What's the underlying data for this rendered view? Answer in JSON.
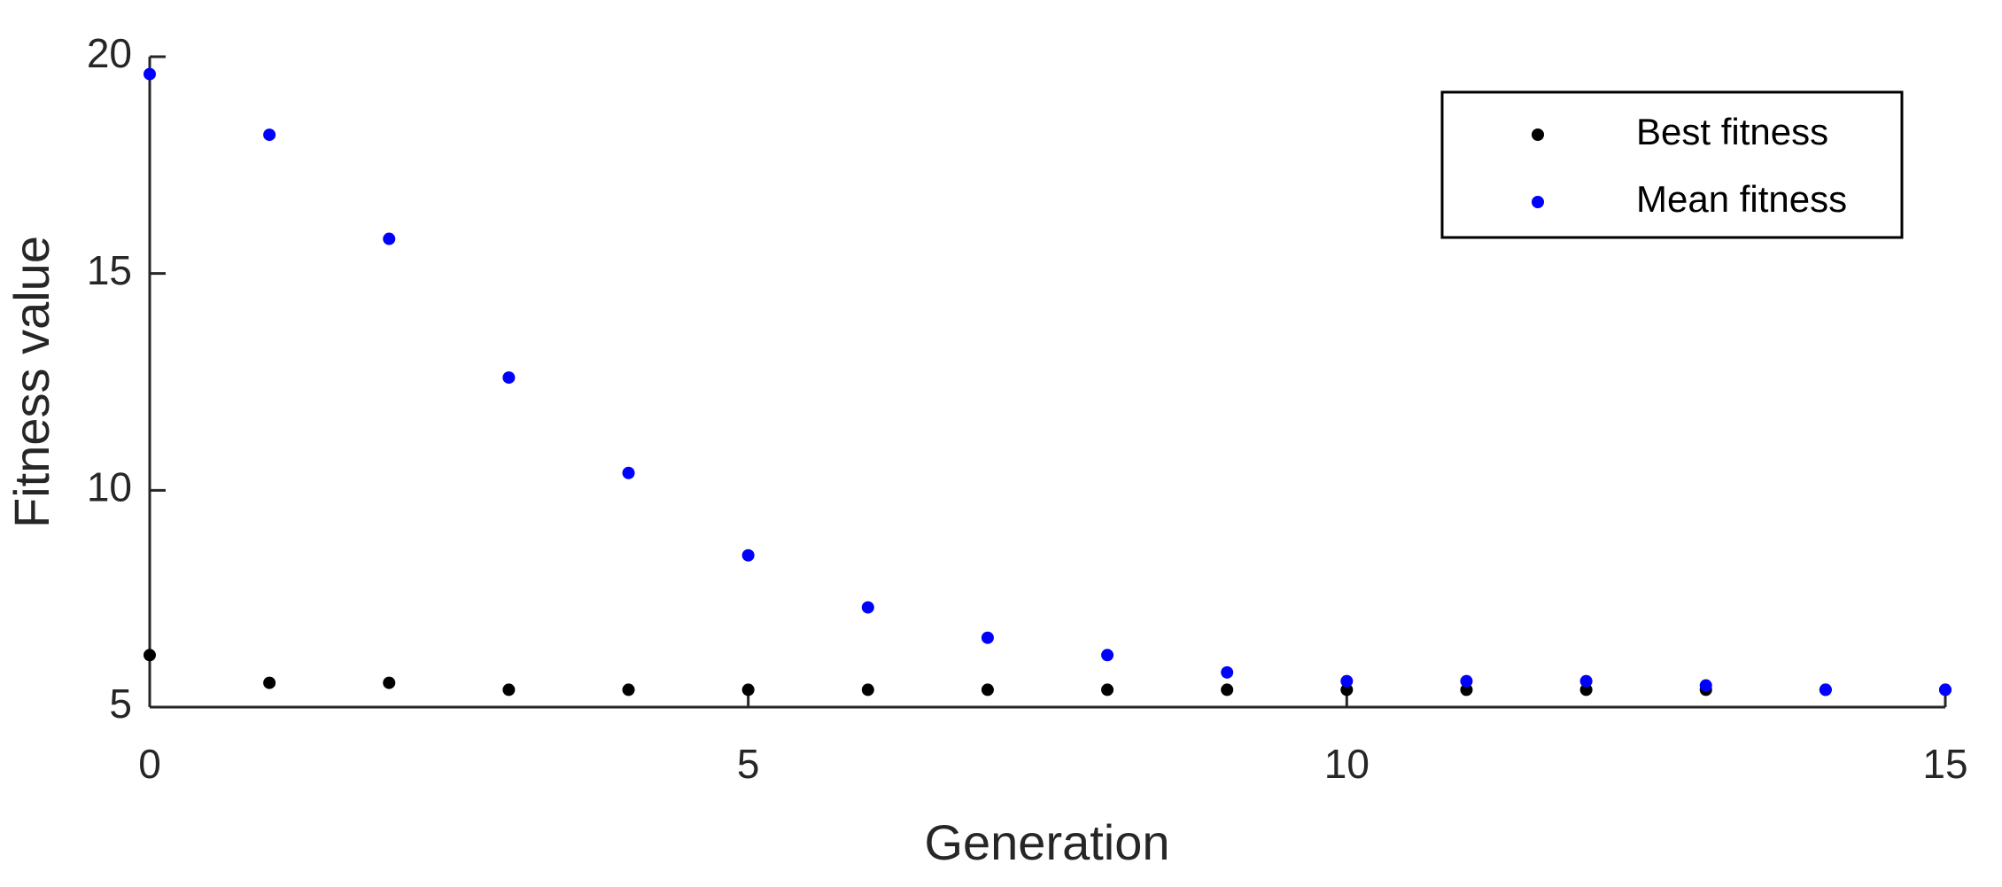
{
  "chart_data": {
    "type": "scatter",
    "x_label": "Generation",
    "y_label": "Fitness value",
    "x": [
      0,
      1,
      2,
      3,
      4,
      5,
      6,
      7,
      8,
      9,
      10,
      11,
      12,
      13,
      14,
      15
    ],
    "series": [
      {
        "name": "Best fitness",
        "color": "#000000",
        "values": [
          6.2,
          5.56,
          5.56,
          5.4,
          5.4,
          5.4,
          5.4,
          5.4,
          5.4,
          5.4,
          5.4,
          5.4,
          5.4,
          5.4,
          5.4,
          5.4
        ]
      },
      {
        "name": "Mean fitness",
        "color": "#0000ff",
        "values": [
          19.6,
          18.2,
          15.8,
          12.6,
          10.4,
          8.5,
          7.3,
          6.6,
          6.2,
          5.8,
          5.6,
          5.6,
          5.6,
          5.5,
          5.4,
          5.4
        ]
      }
    ],
    "xlim": [
      0,
      15
    ],
    "xticks": [
      0,
      5,
      10,
      15
    ],
    "ylim": [
      5,
      20
    ],
    "yticks": [
      5,
      10,
      15,
      20
    ],
    "grid": false,
    "legend": "upper right"
  }
}
